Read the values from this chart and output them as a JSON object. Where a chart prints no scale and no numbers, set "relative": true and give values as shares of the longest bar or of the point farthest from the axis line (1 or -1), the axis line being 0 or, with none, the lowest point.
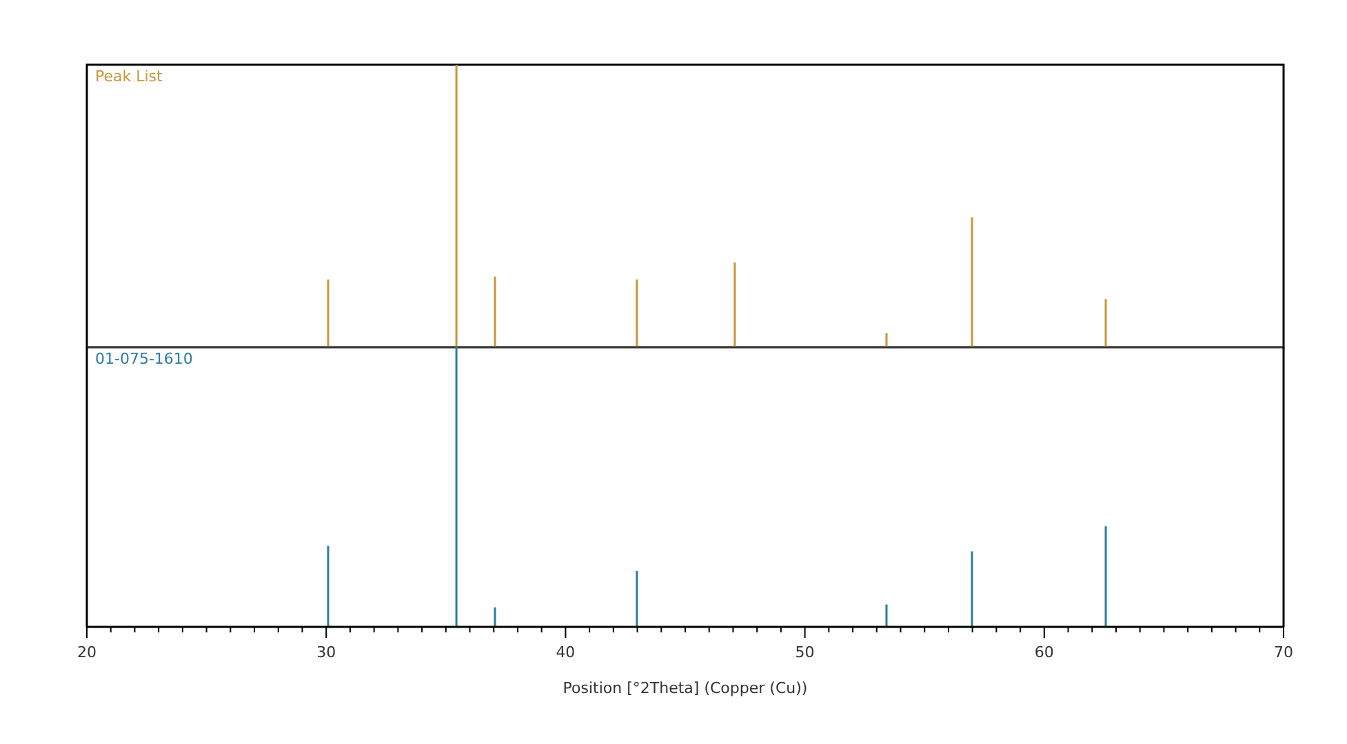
{
  "chart_data": [
    {
      "type": "bar",
      "relative": true,
      "x": [
        30.08,
        35.44,
        37.05,
        42.98,
        47.07,
        53.41,
        56.98,
        62.57
      ],
      "xlim": [
        20,
        70
      ],
      "tick_labels": false,
      "series": [
        {
          "name": "Peak List",
          "color": "#c8963c",
          "values": [
            0.24,
            1.0,
            0.25,
            0.24,
            0.3,
            0.05,
            0.46,
            0.17
          ]
        }
      ]
    },
    {
      "type": "bar",
      "relative": true,
      "x": [
        30.08,
        35.44,
        37.05,
        42.98,
        53.41,
        56.98,
        62.57
      ],
      "xlim": [
        20,
        70
      ],
      "tick_labels": "x",
      "xlabel": "Position [°2Theta] (Copper (Cu))",
      "xticks": [
        20,
        {
          "value": 21,
          "label": null
        },
        {
          "value": 22,
          "label": null
        },
        {
          "value": 23,
          "label": null
        },
        {
          "value": 24,
          "label": null
        },
        {
          "value": 25,
          "label": null
        },
        {
          "value": 26,
          "label": null
        },
        {
          "value": 27,
          "label": null
        },
        {
          "value": 28,
          "label": null
        },
        {
          "value": 29,
          "label": null
        },
        30,
        {
          "value": 31,
          "label": null
        },
        {
          "value": 32,
          "label": null
        },
        {
          "value": 33,
          "label": null
        },
        {
          "value": 34,
          "label": null
        },
        {
          "value": 35,
          "label": null
        },
        {
          "value": 36,
          "label": null
        },
        {
          "value": 37,
          "label": null
        },
        {
          "value": 38,
          "label": null
        },
        {
          "value": 39,
          "label": null
        },
        40,
        {
          "value": 41,
          "label": null
        },
        {
          "value": 42,
          "label": null
        },
        {
          "value": 43,
          "label": null
        },
        {
          "value": 44,
          "label": null
        },
        {
          "value": 45,
          "label": null
        },
        {
          "value": 46,
          "label": null
        },
        {
          "value": 47,
          "label": null
        },
        {
          "value": 48,
          "label": null
        },
        {
          "value": 49,
          "label": null
        },
        50,
        {
          "value": 51,
          "label": null
        },
        {
          "value": 52,
          "label": null
        },
        {
          "value": 53,
          "label": null
        },
        {
          "value": 54,
          "label": null
        },
        {
          "value": 55,
          "label": null
        },
        {
          "value": 56,
          "label": null
        },
        {
          "value": 57,
          "label": null
        },
        {
          "value": 58,
          "label": null
        },
        {
          "value": 59,
          "label": null
        },
        60,
        {
          "value": 61,
          "label": null
        },
        {
          "value": 62,
          "label": null
        },
        {
          "value": 63,
          "label": null
        },
        {
          "value": 64,
          "label": null
        },
        {
          "value": 65,
          "label": null
        },
        {
          "value": 66,
          "label": null
        },
        {
          "value": 67,
          "label": null
        },
        {
          "value": 68,
          "label": null
        },
        {
          "value": 69,
          "label": null
        },
        70
      ],
      "series": [
        {
          "name": "01-075-1610",
          "color": "#2a7ea0",
          "values": [
            0.29,
            1.0,
            0.07,
            0.2,
            0.08,
            0.27,
            0.36
          ]
        }
      ]
    }
  ]
}
